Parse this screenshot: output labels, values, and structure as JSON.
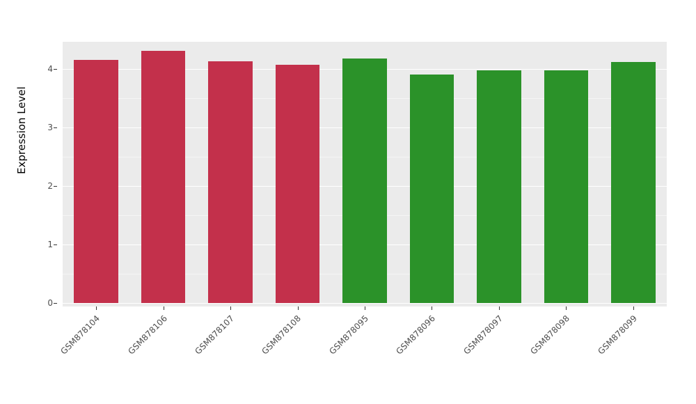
{
  "chart_data": {
    "type": "bar",
    "title": "",
    "xlabel": "",
    "ylabel": "Expression Level",
    "categories": [
      "GSM878104",
      "GSM878106",
      "GSM878107",
      "GSM878108",
      "GSM878095",
      "GSM878096",
      "GSM878097",
      "GSM878098",
      "GSM878099"
    ],
    "values": [
      4.15,
      4.31,
      4.13,
      4.07,
      4.18,
      3.9,
      3.97,
      3.97,
      4.12
    ],
    "bar_colors": [
      "#C3304B",
      "#C3304B",
      "#C3304B",
      "#C3304B",
      "#2B9229",
      "#2B9229",
      "#2B9229",
      "#2B9229",
      "#2B9229"
    ],
    "groups": [
      {
        "color": "#C3304B",
        "samples": [
          "GSM878104",
          "GSM878106",
          "GSM878107",
          "GSM878108"
        ]
      },
      {
        "color": "#2B9229",
        "samples": [
          "GSM878095",
          "GSM878096",
          "GSM878097",
          "GSM878098",
          "GSM878099"
        ]
      }
    ],
    "ylim": [
      0,
      4.46
    ],
    "yticks": [
      0,
      1,
      2,
      3,
      4
    ],
    "grid": true,
    "legend": "none",
    "panel_background": "#EBEBEB",
    "gridline_major_color": "#FFFFFF",
    "gridline_minor_color": "#F5F5F5"
  }
}
